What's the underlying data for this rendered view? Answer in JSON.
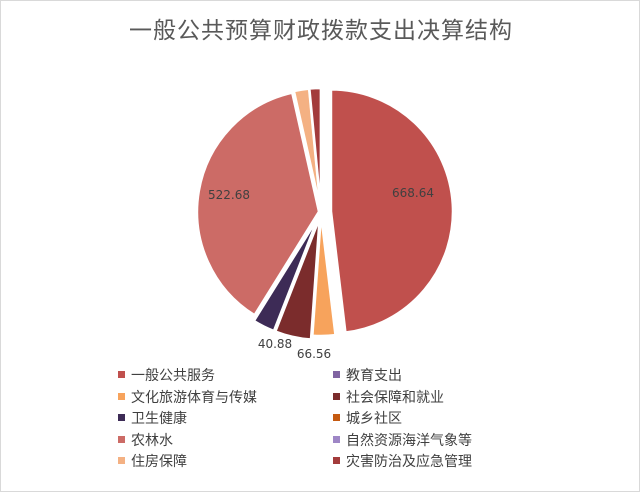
{
  "chart_data": {
    "type": "pie",
    "title": "一般公共预算财政拨款支出决算结构",
    "categories": [
      "一般公共服务",
      "教育支出",
      "文化旅游体育与传媒",
      "社会保障和就业",
      "卫生健康",
      "城乡社区",
      "农林水",
      "自然资源海洋气象等",
      "住房保障",
      "灾害防治及应急管理"
    ],
    "values": [
      668.64,
      0,
      42,
      66.56,
      40.88,
      0,
      522.68,
      0,
      28,
      21
    ],
    "data_labels": [
      "668.64",
      "",
      "",
      "66.56",
      "40.88",
      "",
      "522.68",
      "",
      "",
      ""
    ],
    "colors": [
      "#c0504d",
      "#8064a2",
      "#f7a35c",
      "#7b2c2c",
      "#3d2b56",
      "#c55a11",
      "#cc6b66",
      "#9e86c6",
      "#f4b183",
      "#a33b3b"
    ],
    "legend_position": "bottom",
    "start_angle_deg": 0,
    "direction": "clockwise"
  }
}
